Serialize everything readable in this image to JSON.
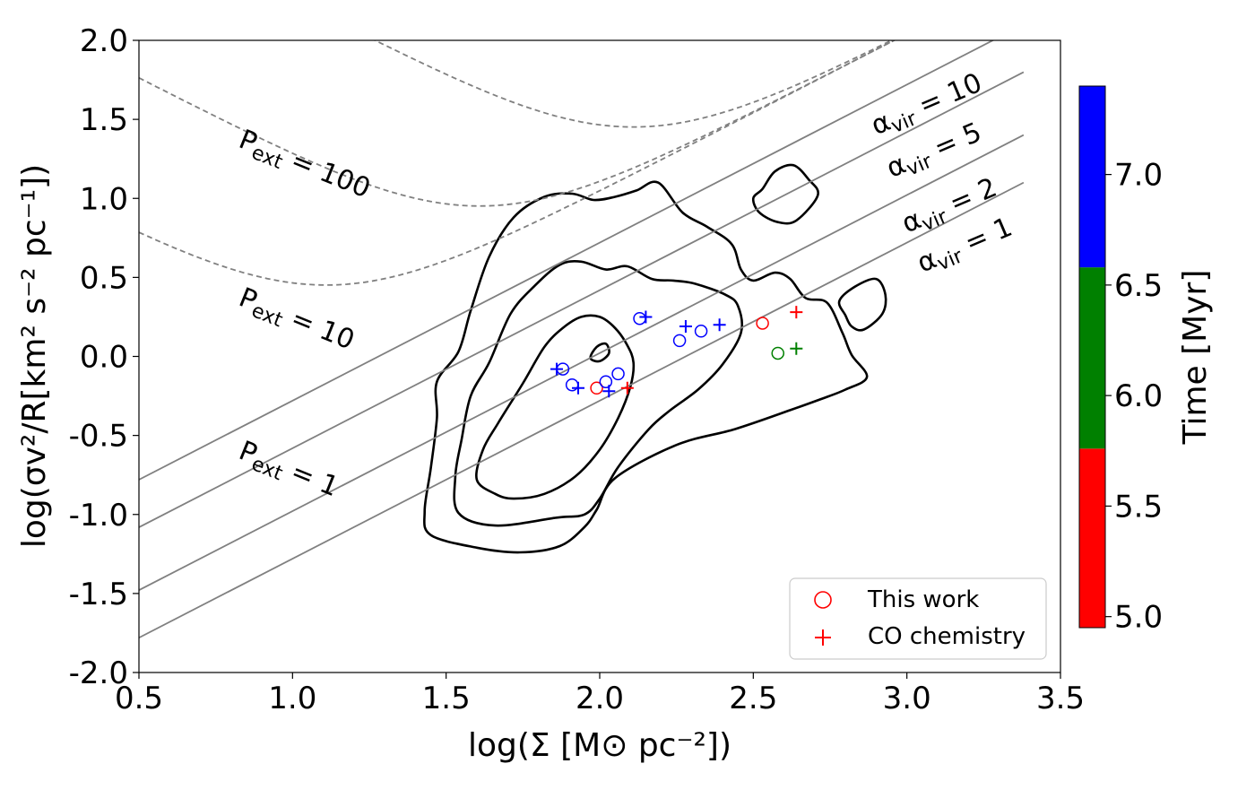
{
  "chart_data": {
    "type": "scatter",
    "title": "",
    "xlabel": "log(Σ [M⊙ pc⁻²])",
    "ylabel": "log(σv²/R[km² s⁻² pc⁻¹])",
    "xlim": [
      0.5,
      3.5
    ],
    "ylim": [
      -2.0,
      2.0
    ],
    "x_ticks": [
      0.5,
      1.0,
      1.5,
      2.0,
      2.5,
      3.0,
      3.5
    ],
    "x_tick_labels": [
      "0.5",
      "1.0",
      "1.5",
      "2.0",
      "2.5",
      "3.0",
      "3.5"
    ],
    "y_ticks": [
      -2.0,
      -1.5,
      -1.0,
      -0.5,
      0.0,
      0.5,
      1.0,
      1.5,
      2.0
    ],
    "y_tick_labels": [
      "-2.0",
      "-1.5",
      "-1.0",
      "-0.5",
      "0.0",
      "0.5",
      "1.0",
      "1.5",
      "2.0"
    ],
    "grid": false,
    "virial_lines": [
      {
        "label": "α_vir = 10",
        "alpha": 10,
        "x_range": [
          0.5,
          3.38
        ]
      },
      {
        "label": "α_vir = 5",
        "alpha": 5,
        "x_range": [
          0.5,
          3.38
        ]
      },
      {
        "label": "α_vir = 2",
        "alpha": 2,
        "x_range": [
          0.5,
          3.38
        ]
      },
      {
        "label": "α_vir = 1",
        "alpha": 1,
        "x_range": [
          0.5,
          3.38
        ]
      }
    ],
    "pressure_curves": [
      {
        "label": "P_ext = 100",
        "value": 100
      },
      {
        "label": "P_ext = 10",
        "value": 10
      },
      {
        "label": "P_ext = 1",
        "value": 1
      }
    ],
    "series": [
      {
        "name": "This work",
        "marker": "circle",
        "points": [
          {
            "x": 1.88,
            "y": -0.08,
            "time": 7.0
          },
          {
            "x": 1.91,
            "y": -0.18,
            "time": 7.0
          },
          {
            "x": 1.99,
            "y": -0.2,
            "time": 5.3
          },
          {
            "x": 2.02,
            "y": -0.16,
            "time": 7.0
          },
          {
            "x": 2.06,
            "y": -0.11,
            "time": 7.0
          },
          {
            "x": 2.13,
            "y": 0.24,
            "time": 7.0
          },
          {
            "x": 2.26,
            "y": 0.1,
            "time": 7.0
          },
          {
            "x": 2.33,
            "y": 0.16,
            "time": 7.0
          },
          {
            "x": 2.53,
            "y": 0.21,
            "time": 5.3
          },
          {
            "x": 2.58,
            "y": 0.02,
            "time": 6.2
          }
        ]
      },
      {
        "name": "CO chemistry",
        "marker": "plus",
        "points": [
          {
            "x": 1.86,
            "y": -0.08,
            "time": 7.0
          },
          {
            "x": 1.93,
            "y": -0.2,
            "time": 7.0
          },
          {
            "x": 2.03,
            "y": -0.22,
            "time": 7.0
          },
          {
            "x": 2.09,
            "y": -0.2,
            "time": 5.3
          },
          {
            "x": 2.15,
            "y": 0.25,
            "time": 7.0
          },
          {
            "x": 2.28,
            "y": 0.19,
            "time": 7.0
          },
          {
            "x": 2.39,
            "y": 0.2,
            "time": 7.0
          },
          {
            "x": 2.64,
            "y": 0.28,
            "time": 5.3
          },
          {
            "x": 2.64,
            "y": 0.05,
            "time": 6.2
          }
        ]
      }
    ],
    "legend": {
      "placement": "lower-right",
      "entries": [
        "This work",
        "CO chemistry"
      ]
    },
    "colorbar": {
      "label": "Time [Myr]",
      "range": [
        4.95,
        7.4
      ],
      "ticks": [
        5.0,
        5.5,
        6.0,
        6.5,
        7.0
      ],
      "tick_labels": [
        "5.0",
        "5.5",
        "6.0",
        "6.5",
        "7.0"
      ],
      "bands": [
        {
          "from": 4.95,
          "to": 5.76,
          "color": "#ff0000"
        },
        {
          "from": 5.76,
          "to": 6.58,
          "color": "#008000"
        },
        {
          "from": 6.58,
          "to": 7.4,
          "color": "#0000ff"
        }
      ]
    },
    "contours": [
      {
        "name": "contour-outer",
        "points": [
          [
            1.74,
            -1.24
          ],
          [
            1.6,
            -1.21
          ],
          [
            1.45,
            -1.13
          ],
          [
            1.43,
            -0.98
          ],
          [
            1.45,
            -0.71
          ],
          [
            1.47,
            -0.39
          ],
          [
            1.47,
            -0.16
          ],
          [
            1.54,
            0.03
          ],
          [
            1.58,
            0.29
          ],
          [
            1.64,
            0.63
          ],
          [
            1.72,
            0.88
          ],
          [
            1.82,
            1.01
          ],
          [
            1.91,
            1.03
          ],
          [
            1.98,
            0.99
          ],
          [
            2.05,
            1.01
          ],
          [
            2.12,
            1.05
          ],
          [
            2.19,
            1.1
          ],
          [
            2.27,
            0.91
          ],
          [
            2.35,
            0.82
          ],
          [
            2.43,
            0.71
          ],
          [
            2.46,
            0.55
          ],
          [
            2.5,
            0.48
          ],
          [
            2.57,
            0.53
          ],
          [
            2.62,
            0.49
          ],
          [
            2.67,
            0.37
          ],
          [
            2.74,
            0.34
          ],
          [
            2.79,
            0.15
          ],
          [
            2.82,
            0.01
          ],
          [
            2.87,
            -0.13
          ],
          [
            2.8,
            -0.21
          ],
          [
            2.72,
            -0.27
          ],
          [
            2.62,
            -0.34
          ],
          [
            2.44,
            -0.46
          ],
          [
            2.25,
            -0.56
          ],
          [
            2.05,
            -0.77
          ],
          [
            1.99,
            -0.97
          ],
          [
            1.95,
            -1.08
          ],
          [
            1.87,
            -1.2
          ]
        ]
      },
      {
        "name": "contour-middle",
        "points": [
          [
            1.86,
            -1.02
          ],
          [
            1.66,
            -1.07
          ],
          [
            1.54,
            -0.99
          ],
          [
            1.53,
            -0.76
          ],
          [
            1.55,
            -0.53
          ],
          [
            1.58,
            -0.25
          ],
          [
            1.64,
            -0.04
          ],
          [
            1.71,
            0.27
          ],
          [
            1.79,
            0.45
          ],
          [
            1.87,
            0.58
          ],
          [
            1.94,
            0.6
          ],
          [
            2.02,
            0.55
          ],
          [
            2.09,
            0.57
          ],
          [
            2.17,
            0.49
          ],
          [
            2.24,
            0.48
          ],
          [
            2.31,
            0.46
          ],
          [
            2.41,
            0.39
          ],
          [
            2.45,
            0.32
          ],
          [
            2.46,
            0.15
          ],
          [
            2.4,
            -0.05
          ],
          [
            2.32,
            -0.21
          ],
          [
            2.23,
            -0.34
          ],
          [
            2.16,
            -0.46
          ],
          [
            2.06,
            -0.7
          ],
          [
            2.0,
            -0.9
          ],
          [
            1.95,
            -1.0
          ]
        ]
      },
      {
        "name": "contour-inner",
        "points": [
          [
            1.66,
            -0.87
          ],
          [
            1.6,
            -0.78
          ],
          [
            1.62,
            -0.59
          ],
          [
            1.67,
            -0.42
          ],
          [
            1.75,
            -0.17
          ],
          [
            1.82,
            0.06
          ],
          [
            1.88,
            0.18
          ],
          [
            1.94,
            0.25
          ],
          [
            2.0,
            0.25
          ],
          [
            2.05,
            0.18
          ],
          [
            2.09,
            0.07
          ],
          [
            2.11,
            -0.04
          ],
          [
            2.1,
            -0.19
          ],
          [
            2.06,
            -0.39
          ],
          [
            2.0,
            -0.59
          ],
          [
            1.92,
            -0.76
          ],
          [
            1.82,
            -0.87
          ],
          [
            1.72,
            -0.9
          ]
        ]
      },
      {
        "name": "contour-blob-small",
        "points": [
          [
            1.97,
            -0.01
          ],
          [
            1.99,
            0.06
          ],
          [
            2.02,
            0.08
          ],
          [
            2.03,
            0.02
          ],
          [
            2.0,
            -0.03
          ]
        ]
      },
      {
        "name": "contour-island-upper",
        "points": [
          [
            2.53,
            1.06
          ],
          [
            2.5,
            1.0
          ],
          [
            2.52,
            0.91
          ],
          [
            2.58,
            0.85
          ],
          [
            2.64,
            0.86
          ],
          [
            2.71,
            1.02
          ],
          [
            2.68,
            1.12
          ],
          [
            2.63,
            1.21
          ],
          [
            2.57,
            1.17
          ]
        ]
      },
      {
        "name": "contour-island-lower",
        "points": [
          [
            2.8,
            0.26
          ],
          [
            2.78,
            0.35
          ],
          [
            2.83,
            0.44
          ],
          [
            2.9,
            0.49
          ],
          [
            2.93,
            0.39
          ],
          [
            2.92,
            0.27
          ],
          [
            2.86,
            0.17
          ],
          [
            2.82,
            0.19
          ]
        ]
      }
    ],
    "annotations": [
      {
        "name": "annot-alpha-10",
        "prefix": "α",
        "sub": "vir",
        "suffix": " = 10",
        "anchor_x": 2.9,
        "anchor_y": 1.4,
        "rotation": -23
      },
      {
        "name": "annot-alpha-5",
        "prefix": "α",
        "sub": "vir",
        "suffix": " = 5",
        "anchor_x": 2.95,
        "anchor_y": 1.13,
        "rotation": -23
      },
      {
        "name": "annot-alpha-2",
        "prefix": "α",
        "sub": "vir",
        "suffix": " = 2",
        "anchor_x": 3.0,
        "anchor_y": 0.78,
        "rotation": -23
      },
      {
        "name": "annot-alpha-1",
        "prefix": "α",
        "sub": "vir",
        "suffix": " = 1",
        "anchor_x": 3.05,
        "anchor_y": 0.53,
        "rotation": -23
      },
      {
        "name": "annot-pext-100",
        "prefix": "P",
        "sub": "ext",
        "suffix": " = 100",
        "anchor_x": 0.82,
        "anchor_y": 1.33,
        "rotation": 22
      },
      {
        "name": "annot-pext-10",
        "prefix": "P",
        "sub": "ext",
        "suffix": " = 10",
        "anchor_x": 0.82,
        "anchor_y": 0.33,
        "rotation": 22
      },
      {
        "name": "annot-pext-1",
        "prefix": "P",
        "sub": "ext",
        "suffix": " = 1",
        "anchor_x": 0.82,
        "anchor_y": -0.64,
        "rotation": 22
      }
    ]
  }
}
